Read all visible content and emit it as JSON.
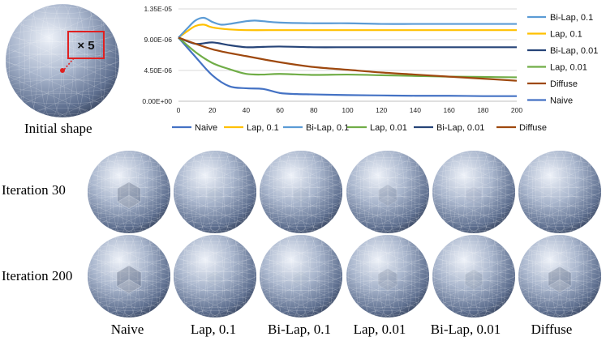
{
  "initial": {
    "caption": "Initial shape",
    "zoom_label": "× 5"
  },
  "grid": {
    "row_labels": [
      "Iteration 30",
      "Iteration 200"
    ],
    "col_labels": [
      "Naive",
      "Lap, 0.1",
      "Bi-Lap, 0.1",
      "Lap, 0.01",
      "Bi-Lap, 0.01",
      "Diffuse"
    ],
    "dent_strength": {
      "iteration_30": [
        0.9,
        0.1,
        0.15,
        0.5,
        0.2,
        0.0
      ],
      "iteration_200": [
        1.0,
        0.1,
        0.1,
        0.55,
        0.4,
        0.85
      ]
    }
  },
  "chart_data": {
    "type": "line",
    "xlabel": "",
    "ylabel": "",
    "xlim": [
      0,
      200
    ],
    "ylim": [
      0,
      1.35e-05
    ],
    "x_ticks": [
      "0",
      "20",
      "40",
      "60",
      "80",
      "100",
      "120",
      "140",
      "160",
      "180",
      "200"
    ],
    "y_ticks": [
      "0.00E+00",
      "4.50E-06",
      "9.00E-06",
      "1.35E-05"
    ],
    "legend_bottom": [
      "Naive",
      "Lap, 0.1",
      "Bi-Lap, 0.1",
      "Lap, 0.01",
      "Bi-Lap, 0.01",
      "Diffuse"
    ],
    "legend_right": [
      "Bi-Lap, 0.1",
      "Lap, 0.1",
      "Bi-Lap, 0.01",
      "Lap, 0.01",
      "Diffuse",
      "Naive"
    ],
    "series": [
      {
        "name": "Naive",
        "color": "#4472c4",
        "x": [
          0,
          10,
          20,
          30,
          40,
          50,
          60,
          70,
          80,
          100,
          120,
          140,
          160,
          180,
          200
        ],
        "y": [
          9.3e-06,
          6.5e-06,
          3.8e-06,
          2.2e-06,
          1.9e-06,
          1.8e-06,
          1.2e-06,
          1.05e-06,
          1e-06,
          9e-07,
          8.5e-07,
          8e-07,
          8e-07,
          7.5e-07,
          7.5e-07
        ]
      },
      {
        "name": "Lap, 0.1",
        "color": "#ffc000",
        "x": [
          0,
          5,
          10,
          15,
          20,
          30,
          40,
          60,
          80,
          100,
          120,
          140,
          160,
          180,
          200
        ],
        "y": [
          9.3e-06,
          1.02e-05,
          1.1e-05,
          1.12e-05,
          1.08e-05,
          1.05e-05,
          1.04e-05,
          1.04e-05,
          1.04e-05,
          1.04e-05,
          1.04e-05,
          1.04e-05,
          1.04e-05,
          1.04e-05,
          1.04e-05
        ]
      },
      {
        "name": "Bi-Lap, 0.1",
        "color": "#5b9bd5",
        "x": [
          0,
          5,
          10,
          15,
          20,
          25,
          30,
          40,
          45,
          50,
          60,
          80,
          100,
          120,
          140,
          160,
          180,
          200
        ],
        "y": [
          9.3e-06,
          1.06e-05,
          1.18e-05,
          1.22e-05,
          1.16e-05,
          1.12e-05,
          1.13e-05,
          1.17e-05,
          1.18e-05,
          1.17e-05,
          1.15e-05,
          1.14e-05,
          1.14e-05,
          1.13e-05,
          1.13e-05,
          1.13e-05,
          1.13e-05,
          1.13e-05
        ]
      },
      {
        "name": "Lap, 0.01",
        "color": "#70ad47",
        "x": [
          0,
          10,
          20,
          30,
          40,
          50,
          60,
          80,
          100,
          120,
          140,
          160,
          180,
          200
        ],
        "y": [
          9.3e-06,
          7.2e-06,
          5.6e-06,
          4.7e-06,
          4e-06,
          3.9e-06,
          4e-06,
          3.85e-06,
          3.9e-06,
          3.8e-06,
          3.7e-06,
          3.6e-06,
          3.55e-06,
          3.5e-06
        ]
      },
      {
        "name": "Bi-Lap, 0.01",
        "color": "#264478",
        "x": [
          0,
          10,
          20,
          30,
          40,
          50,
          60,
          80,
          100,
          120,
          140,
          160,
          180,
          200
        ],
        "y": [
          9.3e-06,
          8.4e-06,
          8.6e-06,
          8.2e-06,
          7.9e-06,
          7.95e-06,
          8e-06,
          7.9e-06,
          7.9e-06,
          7.9e-06,
          7.9e-06,
          7.9e-06,
          7.9e-06,
          7.9e-06
        ]
      },
      {
        "name": "Diffuse",
        "color": "#9e480e",
        "x": [
          0,
          20,
          40,
          60,
          80,
          100,
          120,
          140,
          160,
          180,
          200
        ],
        "y": [
          9.3e-06,
          7.6e-06,
          6.6e-06,
          5.7e-06,
          5e-06,
          4.6e-06,
          4.2e-06,
          3.9e-06,
          3.6e-06,
          3.3e-06,
          3e-06
        ]
      }
    ]
  }
}
